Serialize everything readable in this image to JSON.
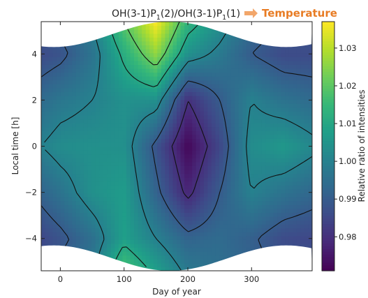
{
  "chart_data": {
    "type": "heatmap",
    "title": {
      "segments": [
        {
          "text": "OH(3-1)P",
          "sub": false
        },
        {
          "text": "1",
          "sub": true
        },
        {
          "text": "(2)/OH(3-1)P",
          "sub": false
        },
        {
          "text": "1",
          "sub": true
        },
        {
          "text": "(1)",
          "sub": false
        }
      ],
      "accent_label": "Temperature",
      "accent_color": "#e87c24"
    },
    "xlabel": "Day of year",
    "ylabel": "Local time [h]",
    "colorbar_label": "Relative ratio of intensities",
    "xlim": [
      -30,
      395
    ],
    "ylim": [
      -5.4,
      5.4
    ],
    "x_ticks": [
      0,
      100,
      200,
      300
    ],
    "y_ticks": [
      -4,
      -2,
      0,
      2,
      4
    ],
    "colorbar_ticks": [
      0.98,
      0.99,
      1.0,
      1.01,
      1.02,
      1.03
    ],
    "colorbar_tick_labels": [
      "0.98",
      "0.99",
      "1.00",
      "1.01",
      "1.02",
      "1.03"
    ],
    "colorbar_range": [
      0.971,
      1.037
    ],
    "colormap": "viridis",
    "x": [
      -30,
      0,
      50,
      100,
      150,
      200,
      250,
      300,
      350,
      395
    ],
    "y": [
      -5.4,
      -4,
      -2,
      0,
      2,
      4,
      5.4
    ],
    "z": [
      [
        0.99,
        0.992,
        0.998,
        1.018,
        1.008,
        0.998,
        0.995,
        0.992,
        0.99,
        0.99
      ],
      [
        0.985,
        0.988,
        0.995,
        1.008,
        1.0,
        0.992,
        0.994,
        0.991,
        0.986,
        0.985
      ],
      [
        0.992,
        0.996,
        1.004,
        1.007,
        0.992,
        0.978,
        0.99,
        1.0,
        0.996,
        0.993
      ],
      [
        1.0,
        1.003,
        1.004,
        1.004,
        0.988,
        0.972,
        0.985,
        1.003,
        1.006,
        1.002
      ],
      [
        0.994,
        0.997,
        1.0,
        1.004,
        1.004,
        0.98,
        0.99,
        1.0,
        0.996,
        0.994
      ],
      [
        0.986,
        0.988,
        0.996,
        1.012,
        1.026,
        1.004,
        0.998,
        0.99,
        0.986,
        0.986
      ],
      [
        0.99,
        0.992,
        1.0,
        1.02,
        1.037,
        1.014,
        1.004,
        0.994,
        0.99,
        0.99
      ]
    ],
    "contour_levels": [
      0.98,
      0.99,
      1.0,
      1.01,
      1.02
    ],
    "grid": false
  }
}
